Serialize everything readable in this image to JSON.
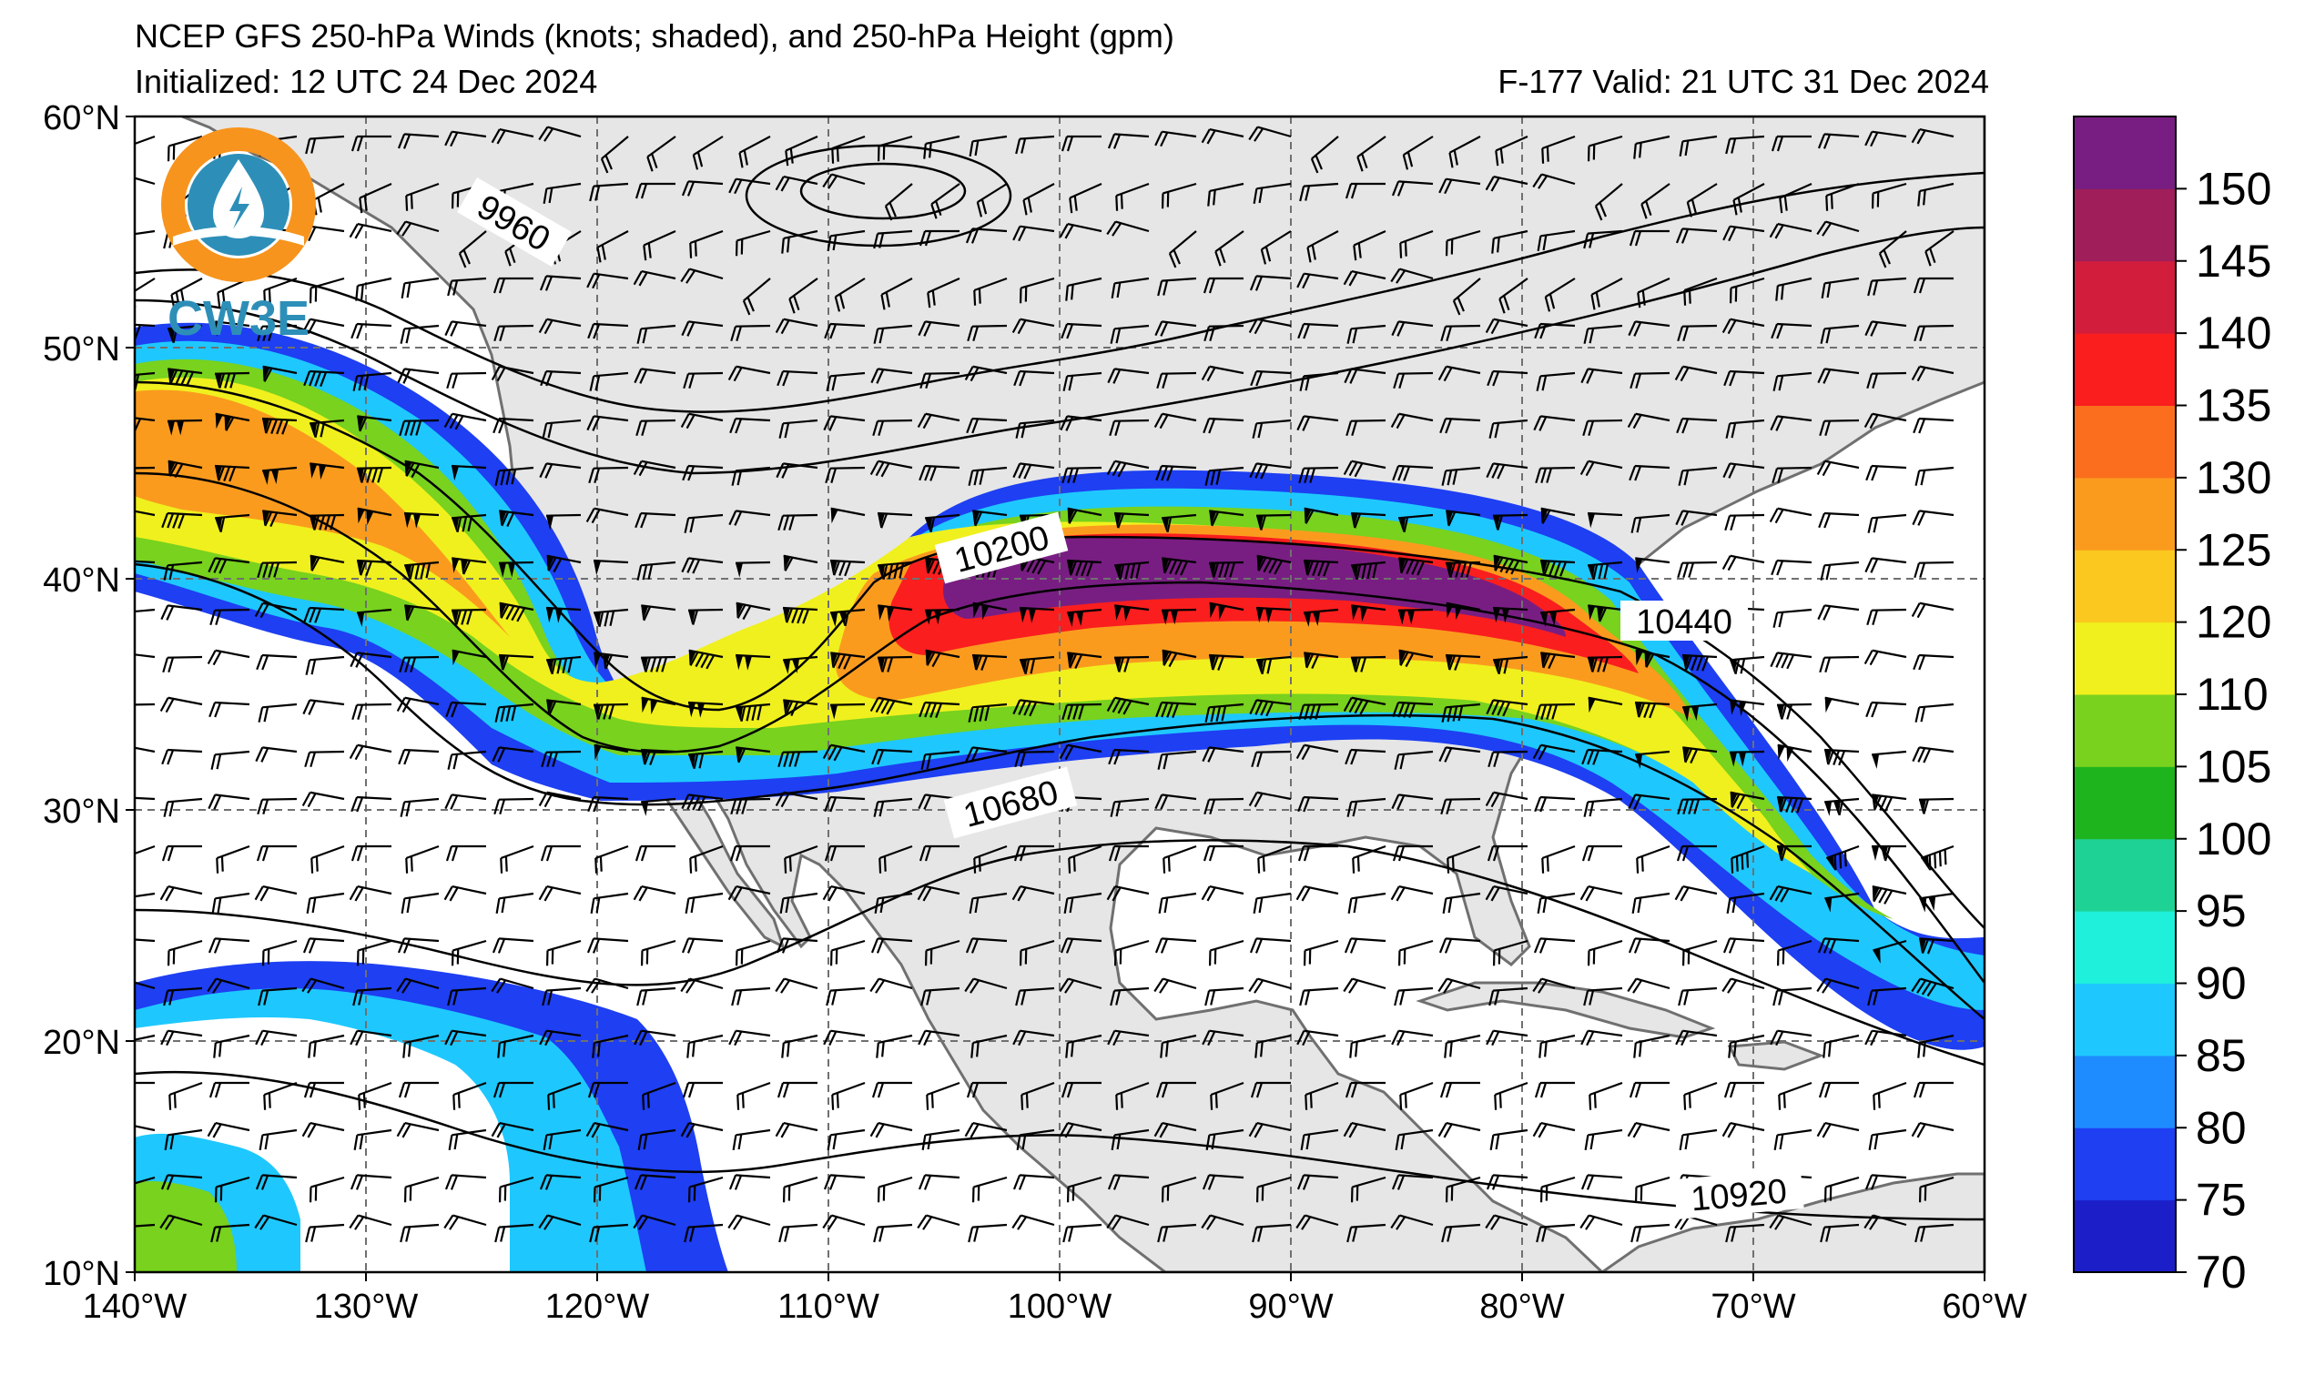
{
  "header": {
    "title_line1": "NCEP GFS 250-hPa Winds (knots; shaded), and 250-hPa Height (gpm)",
    "title_line2": "Initialized: 12 UTC 24 Dec 2024",
    "title_right": "F-177  Valid: 21 UTC 31 Dec 2024"
  },
  "logo": {
    "text": "CW3E"
  },
  "map": {
    "extent": {
      "lon_min": -140,
      "lon_max": -60,
      "lat_min": 10,
      "lat_max": 60
    },
    "lat_ticks": [
      {
        "value": 60,
        "label": "60°N"
      },
      {
        "value": 50,
        "label": "50°N"
      },
      {
        "value": 40,
        "label": "40°N"
      },
      {
        "value": 30,
        "label": "30°N"
      },
      {
        "value": 20,
        "label": "20°N"
      },
      {
        "value": 10,
        "label": "10°N"
      }
    ],
    "lon_ticks": [
      {
        "value": -140,
        "label": "140°W"
      },
      {
        "value": -130,
        "label": "130°W"
      },
      {
        "value": -120,
        "label": "120°W"
      },
      {
        "value": -110,
        "label": "110°W"
      },
      {
        "value": -100,
        "label": "100°W"
      },
      {
        "value": -90,
        "label": "90°W"
      },
      {
        "value": -80,
        "label": "80°W"
      },
      {
        "value": -70,
        "label": "70°W"
      },
      {
        "value": -60,
        "label": "60°W"
      }
    ],
    "contour_labels": [
      "9960",
      "10200",
      "10440",
      "10680",
      "10920"
    ],
    "land_color": "#e6e6e6",
    "ocean_color": "#ffffff"
  },
  "colorbar": {
    "levels": [
      70,
      75,
      80,
      85,
      90,
      95,
      100,
      105,
      110,
      120,
      125,
      130,
      135,
      140,
      145,
      150,
      155
    ],
    "labels": [
      "70",
      "75",
      "80",
      "85",
      "90",
      "95",
      "100",
      "105",
      "110",
      "120",
      "125",
      "130",
      "135",
      "140",
      "145",
      "150"
    ],
    "colors": [
      "#1c1fc8",
      "#1e3ff2",
      "#1e8cff",
      "#1ec8ff",
      "#1ef0dc",
      "#1ed296",
      "#1eb41e",
      "#78d21e",
      "#f0f01e",
      "#fac81e",
      "#fa9b1e",
      "#fa6e1e",
      "#fa1e1e",
      "#d21e3c",
      "#a01e5a",
      "#781e82"
    ]
  }
}
